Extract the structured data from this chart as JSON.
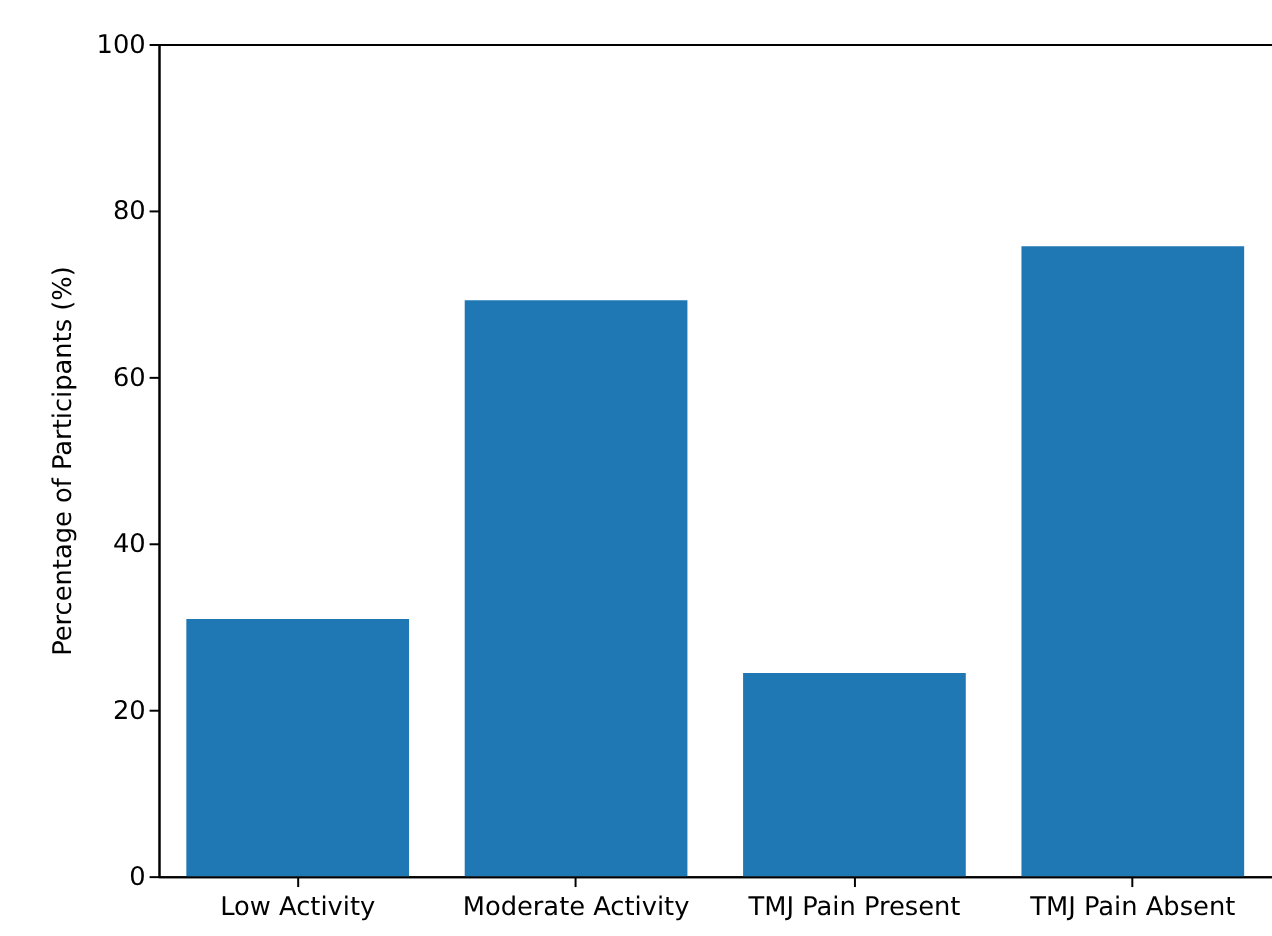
{
  "chart_data": {
    "type": "bar",
    "ylabel": "Percentage of Participants (%)",
    "categories": [
      "Low Activity",
      "Moderate Activity",
      "TMJ Pain Present",
      "TMJ Pain Absent"
    ],
    "values": [
      30.9,
      69.2,
      24.4,
      75.7
    ],
    "color": "#1f77b4",
    "ylim": [
      0,
      100
    ],
    "yticks": [
      0,
      20,
      40,
      60,
      80,
      100
    ],
    "grid": false
  }
}
